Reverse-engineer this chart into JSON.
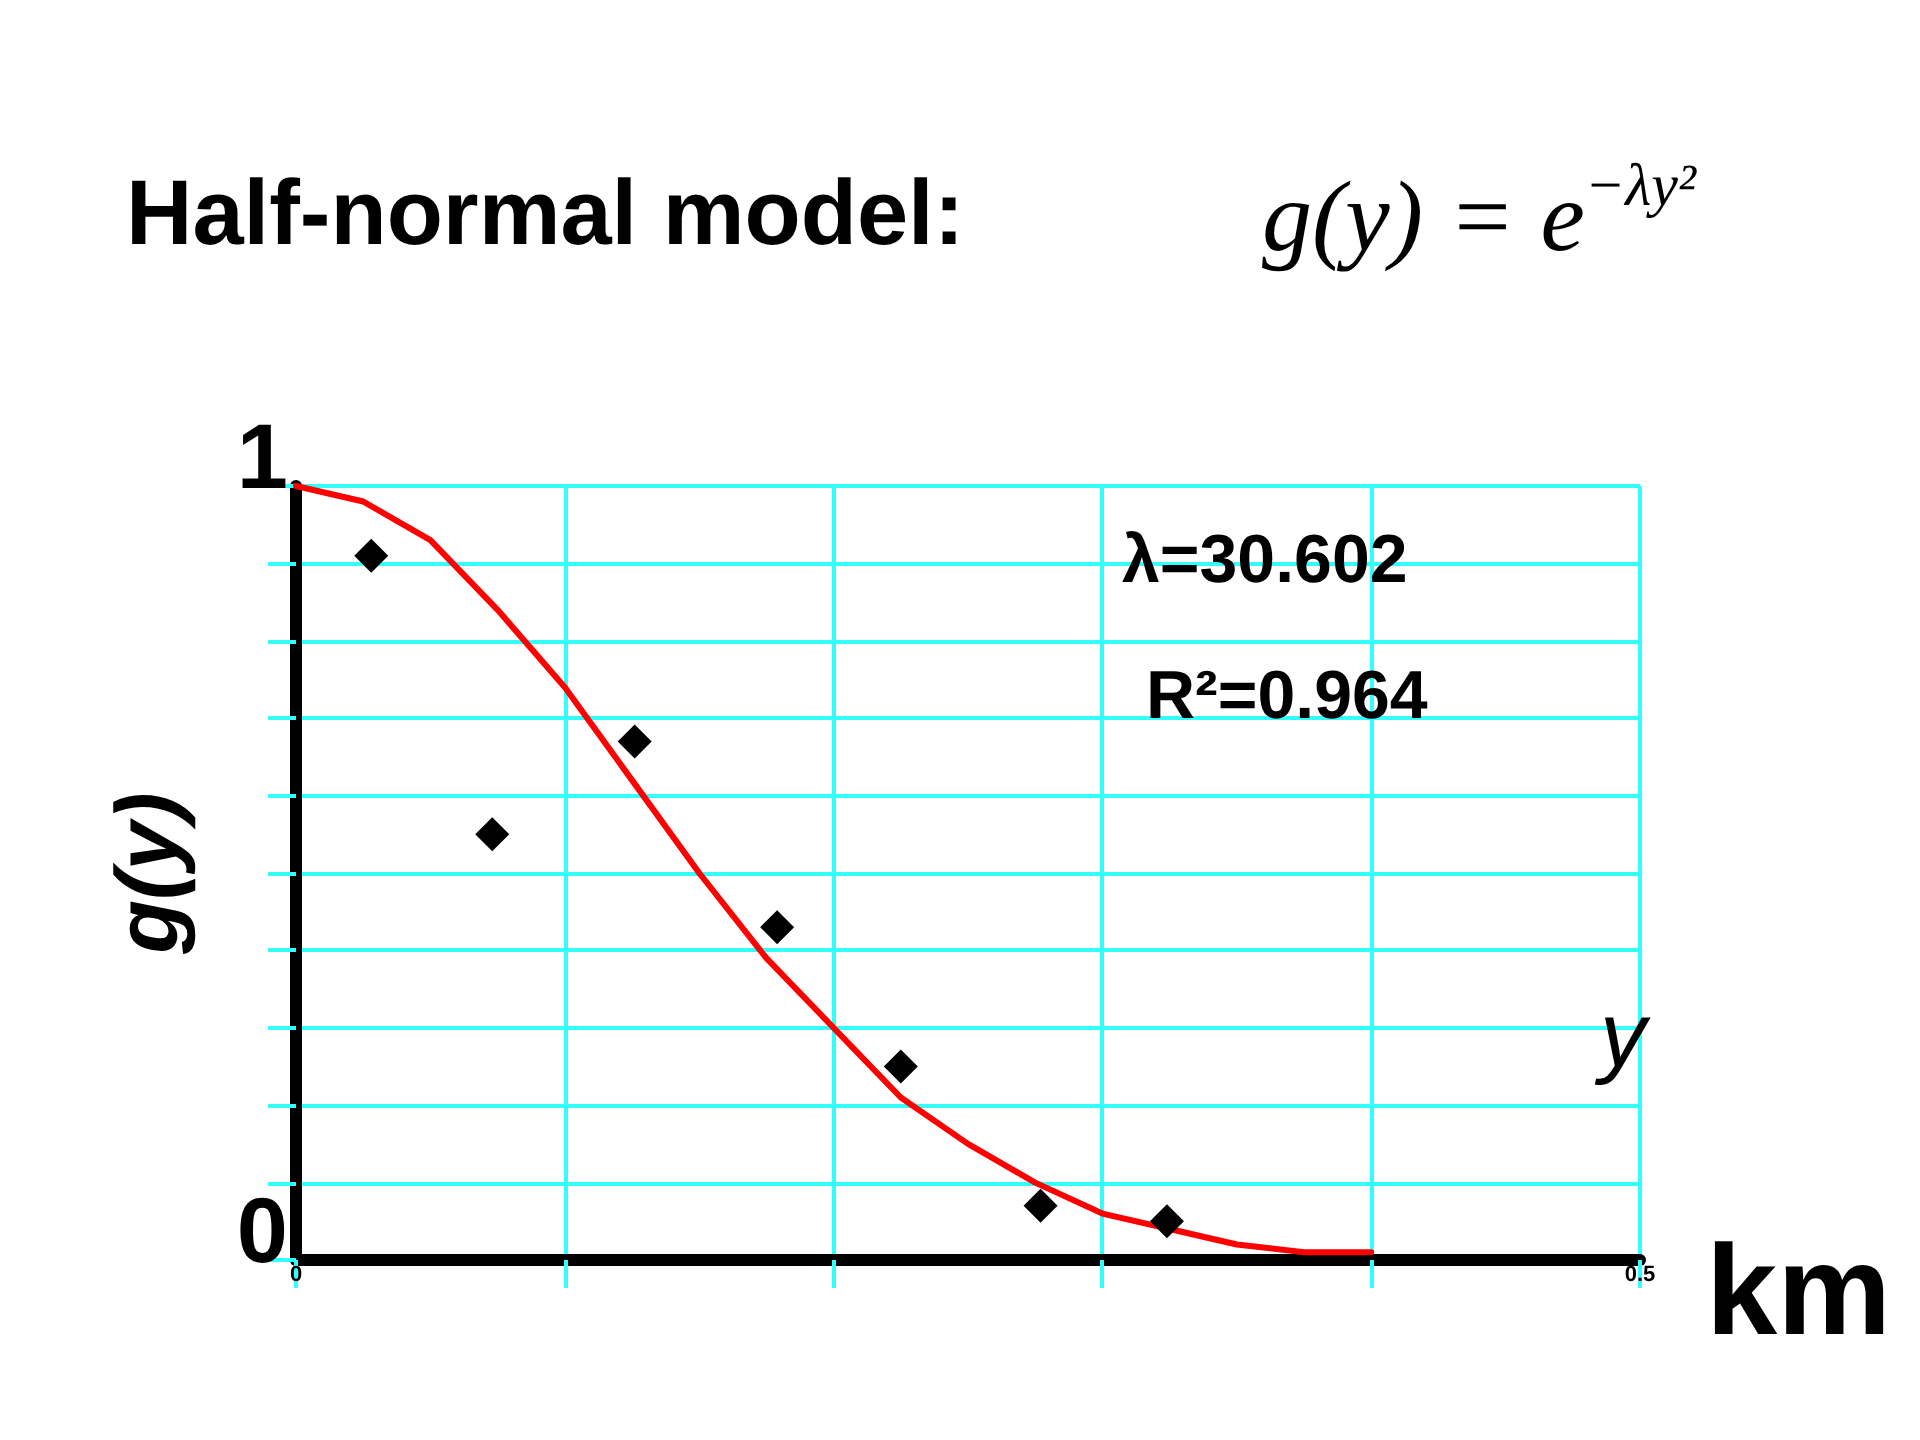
{
  "chart_data": {
    "type": "scatter",
    "title": "Half-normal model:",
    "subtitle": "g(y) = e$^{−λy²}$",
    "xlabel": "y",
    "ylabel": "g(y)",
    "annotations": [
      "λ=30.602",
      "R²=0.964",
      "km"
    ],
    "xlim": [
      0,
      0.5
    ],
    "ylim": [
      0,
      1
    ],
    "xticks": [
      0,
      {
        "value": 0.1,
        "label": null
      },
      {
        "value": 0.2,
        "label": null
      },
      {
        "value": 0.3,
        "label": null
      },
      {
        "value": 0.4,
        "label": null
      },
      0.5
    ],
    "yticks": [
      0,
      {
        "value": 0.1,
        "label": null
      },
      {
        "value": 0.2,
        "label": null
      },
      {
        "value": 0.3,
        "label": null
      },
      {
        "value": 0.4,
        "label": null
      },
      {
        "value": 0.5,
        "label": null
      },
      {
        "value": 0.6,
        "label": null
      },
      {
        "value": 0.7,
        "label": null
      },
      {
        "value": 0.8,
        "label": null
      },
      {
        "value": 0.9,
        "label": null
      },
      1
    ],
    "grid": true,
    "series": [
      {
        "color": "#000000",
        "marker": "diamond",
        "x": [
          0.028,
          0.073,
          0.126,
          0.179,
          0.225,
          0.277,
          0.324
        ],
        "values": [
          0.91,
          0.55,
          0.67,
          0.43,
          0.25,
          0.07,
          0.05
        ]
      },
      {
        "type": "line",
        "color": "#ff0000",
        "marker": "none",
        "line_style": "solid",
        "x": [
          0,
          0.025,
          0.05,
          0.075,
          0.1,
          0.125,
          0.15,
          0.175,
          0.2,
          0.225,
          0.25,
          0.275,
          0.3,
          0.325,
          0.35,
          0.375,
          0.4
        ],
        "values": [
          1,
          0.98,
          0.93,
          0.84,
          0.74,
          0.62,
          0.5,
          0.39,
          0.3,
          0.21,
          0.15,
          0.1,
          0.06,
          0.04,
          0.02,
          0.01,
          0.01
        ]
      }
    ]
  }
}
